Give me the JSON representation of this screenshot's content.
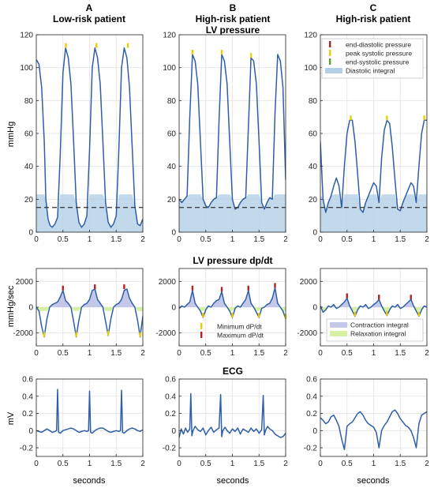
{
  "figure": {
    "columns": [
      {
        "letter": "A",
        "title": "Low-risk patient"
      },
      {
        "letter": "B",
        "title": "High-risk patient"
      },
      {
        "letter": "C",
        "title": "High-risk patient"
      }
    ],
    "row_titles": [
      "LV pressure",
      "LV pressure dp/dt",
      "ECG"
    ],
    "row_ylabels": [
      "mmHg",
      "mmHg/sec",
      "mV"
    ],
    "xlabel": "seconds",
    "colors": {
      "trace": "#2f5ea8",
      "fill_blue": "#b3cfe6",
      "fill_lavender": "#c3c7e8",
      "fill_green": "#d5f0a0",
      "marker_red": "#b22222",
      "marker_yellow": "#e8d000",
      "marker_green": "#5aa02c",
      "dashed": "#333333"
    }
  },
  "legends": {
    "pressure": [
      {
        "label": "end-diastolic pressure",
        "color": "#b22222",
        "kind": "tick"
      },
      {
        "label": "peak systolic pressure",
        "color": "#e8d000",
        "kind": "tick"
      },
      {
        "label": "end-systolic pressure",
        "color": "#5aa02c",
        "kind": "tick"
      },
      {
        "label": "Diastolic integral",
        "color": "#b3cfe6",
        "kind": "patch"
      }
    ],
    "dpdt_markers": [
      {
        "label": "Minimum dP/dt",
        "color": "#e8d000",
        "kind": "tick"
      },
      {
        "label": "Maximum dP/dt",
        "color": "#b22222",
        "kind": "tick"
      }
    ],
    "dpdt_integrals": [
      {
        "label": "Contraction integral",
        "color": "#c3c7e8",
        "kind": "patch"
      },
      {
        "label": "Relaxation integral",
        "color": "#d5f0a0",
        "kind": "patch"
      }
    ]
  },
  "chart_data": [
    {
      "id": "A-pressure",
      "type": "line",
      "ylabel": "mmHg",
      "xlim": [
        0,
        2
      ],
      "ylim": [
        0,
        120
      ],
      "xticks": [
        0,
        0.5,
        1,
        1.5,
        2
      ],
      "yticks": [
        0,
        20,
        40,
        60,
        80,
        100,
        120
      ],
      "grid": true,
      "threshold": 15,
      "x": [
        0,
        0.05,
        0.1,
        0.15,
        0.18,
        0.22,
        0.26,
        0.3,
        0.35,
        0.4,
        0.45,
        0.5,
        0.55,
        0.6,
        0.65,
        0.7,
        0.75,
        0.8,
        0.85,
        0.9,
        0.95,
        1,
        1.05,
        1.1,
        1.15,
        1.2,
        1.25,
        1.3,
        1.35,
        1.4,
        1.45,
        1.5,
        1.55,
        1.6,
        1.65,
        1.7,
        1.75,
        1.8,
        1.85,
        1.9,
        1.95,
        2
      ],
      "y": [
        105,
        102,
        88,
        55,
        20,
        8,
        4,
        3,
        5,
        9,
        48,
        97,
        112,
        106,
        90,
        55,
        18,
        6,
        3,
        5,
        10,
        50,
        100,
        112,
        106,
        90,
        55,
        18,
        6,
        3,
        5,
        10,
        50,
        100,
        112,
        106,
        88,
        52,
        16,
        5,
        4,
        8
      ],
      "markers": [
        {
          "x": 0.555,
          "y": 112,
          "color": "#e8d000"
        },
        {
          "x": 1.13,
          "y": 112,
          "color": "#e8d000"
        },
        {
          "x": 1.72,
          "y": 112,
          "color": "#e8d000"
        }
      ]
    },
    {
      "id": "B-pressure",
      "type": "line",
      "ylabel": "mmHg",
      "xlim": [
        0,
        2
      ],
      "ylim": [
        0,
        120
      ],
      "xticks": [
        0,
        0.5,
        1,
        1.5,
        2
      ],
      "yticks": [
        0,
        20,
        40,
        60,
        80,
        100,
        120
      ],
      "grid": true,
      "threshold": 15,
      "x": [
        0,
        0.05,
        0.1,
        0.15,
        0.2,
        0.25,
        0.3,
        0.35,
        0.4,
        0.45,
        0.5,
        0.55,
        0.6,
        0.65,
        0.7,
        0.75,
        0.8,
        0.85,
        0.9,
        0.95,
        1,
        1.05,
        1.1,
        1.15,
        1.2,
        1.25,
        1.3,
        1.35,
        1.4,
        1.45,
        1.5,
        1.55,
        1.6,
        1.65,
        1.7,
        1.75,
        1.8,
        1.85,
        1.9,
        1.95,
        2
      ],
      "y": [
        20,
        18,
        20,
        22,
        70,
        108,
        104,
        90,
        55,
        20,
        16,
        15,
        18,
        20,
        21,
        68,
        108,
        104,
        90,
        55,
        20,
        14,
        15,
        18,
        20,
        21,
        64,
        106,
        104,
        90,
        55,
        18,
        14,
        18,
        21,
        20,
        72,
        108,
        104,
        88,
        32
      ],
      "markers": [
        {
          "x": 0.25,
          "y": 108,
          "color": "#e8d000"
        },
        {
          "x": 0.8,
          "y": 108,
          "color": "#e8d000"
        },
        {
          "x": 1.35,
          "y": 106,
          "color": "#e8d000"
        }
      ]
    },
    {
      "id": "C-pressure",
      "type": "line",
      "ylabel": "mmHg",
      "xlim": [
        0,
        2
      ],
      "ylim": [
        0,
        120
      ],
      "xticks": [
        0,
        0.5,
        1,
        1.5,
        2
      ],
      "yticks": [
        0,
        20,
        40,
        60,
        80,
        100,
        120
      ],
      "grid": true,
      "threshold": 15,
      "x": [
        0,
        0.05,
        0.1,
        0.15,
        0.2,
        0.25,
        0.3,
        0.35,
        0.4,
        0.45,
        0.5,
        0.55,
        0.6,
        0.65,
        0.7,
        0.75,
        0.8,
        0.85,
        0.9,
        0.95,
        1,
        1.05,
        1.1,
        1.15,
        1.2,
        1.25,
        1.3,
        1.35,
        1.4,
        1.45,
        1.5,
        1.55,
        1.6,
        1.65,
        1.7,
        1.75,
        1.8,
        1.85,
        1.9,
        1.95,
        2
      ],
      "y": [
        55,
        20,
        12,
        18,
        22,
        28,
        33,
        28,
        15,
        40,
        60,
        68,
        68,
        55,
        35,
        14,
        12,
        18,
        22,
        26,
        30,
        28,
        18,
        45,
        62,
        68,
        66,
        52,
        32,
        14,
        13,
        18,
        22,
        26,
        30,
        28,
        18,
        40,
        60,
        68,
        68
      ],
      "markers": [
        {
          "x": 0.57,
          "y": 68,
          "color": "#e8d000"
        },
        {
          "x": 1.25,
          "y": 68,
          "color": "#e8d000"
        },
        {
          "x": 1.95,
          "y": 68,
          "color": "#e8d000"
        }
      ]
    },
    {
      "id": "A-dpdt",
      "type": "line",
      "ylabel": "mmHg/sec",
      "xlim": [
        0,
        2
      ],
      "ylim": [
        -3000,
        3000
      ],
      "xticks": [
        0,
        0.5,
        1,
        1.5,
        2
      ],
      "yticks": [
        -2000,
        0,
        2000
      ],
      "grid": true,
      "x": [
        0,
        0.05,
        0.1,
        0.15,
        0.2,
        0.25,
        0.3,
        0.35,
        0.4,
        0.45,
        0.5,
        0.55,
        0.6,
        0.65,
        0.7,
        0.75,
        0.8,
        0.85,
        0.9,
        0.95,
        1,
        1.05,
        1.1,
        1.15,
        1.2,
        1.25,
        1.3,
        1.35,
        1.4,
        1.45,
        1.5,
        1.55,
        1.6,
        1.65,
        1.7,
        1.75,
        1.8,
        1.85,
        1.9,
        1.95,
        2
      ],
      "y": [
        0,
        -300,
        -1500,
        -2300,
        -900,
        0,
        200,
        300,
        400,
        800,
        1300,
        500,
        300,
        0,
        -1100,
        -2300,
        -1000,
        0,
        200,
        300,
        600,
        1300,
        1400,
        600,
        300,
        0,
        -1100,
        -2200,
        -900,
        0,
        200,
        300,
        600,
        1300,
        1400,
        700,
        300,
        0,
        -1000,
        -2300,
        -700
      ],
      "markers": [
        {
          "x": 0.5,
          "y": 1300,
          "color": "#b22222"
        },
        {
          "x": 1.1,
          "y": 1400,
          "color": "#b22222"
        },
        {
          "x": 1.65,
          "y": 1400,
          "color": "#b22222"
        },
        {
          "x": 0.15,
          "y": -2300,
          "color": "#e8d000"
        },
        {
          "x": 0.75,
          "y": -2300,
          "color": "#e8d000"
        },
        {
          "x": 1.35,
          "y": -2200,
          "color": "#e8d000"
        },
        {
          "x": 1.95,
          "y": -2300,
          "color": "#e8d000"
        }
      ]
    },
    {
      "id": "B-dpdt",
      "type": "line",
      "ylabel": "mmHg/sec",
      "xlim": [
        0,
        2
      ],
      "ylim": [
        -3000,
        3000
      ],
      "xticks": [
        0,
        0.5,
        1,
        1.5,
        2
      ],
      "yticks": [
        -2000,
        0,
        2000
      ],
      "grid": true,
      "x": [
        0,
        0.05,
        0.1,
        0.15,
        0.2,
        0.25,
        0.3,
        0.35,
        0.4,
        0.45,
        0.5,
        0.55,
        0.6,
        0.65,
        0.7,
        0.75,
        0.8,
        0.85,
        0.9,
        0.95,
        1,
        1.05,
        1.1,
        1.15,
        1.2,
        1.25,
        1.3,
        1.35,
        1.4,
        1.45,
        1.5,
        1.55,
        1.6,
        1.65,
        1.7,
        1.75,
        1.8,
        1.85,
        1.9,
        1.95,
        2
      ],
      "y": [
        -100,
        100,
        0,
        200,
        400,
        1300,
        300,
        0,
        -300,
        -800,
        -200,
        100,
        0,
        300,
        500,
        600,
        1200,
        300,
        0,
        -300,
        -800,
        -100,
        100,
        0,
        300,
        600,
        1300,
        300,
        0,
        -400,
        -800,
        -100,
        0,
        200,
        300,
        700,
        1500,
        300,
        0,
        -300,
        -900
      ],
      "markers": [
        {
          "x": 0.25,
          "y": 1300,
          "color": "#b22222"
        },
        {
          "x": 0.8,
          "y": 1200,
          "color": "#b22222"
        },
        {
          "x": 1.3,
          "y": 1300,
          "color": "#b22222"
        },
        {
          "x": 1.8,
          "y": 1500,
          "color": "#b22222"
        },
        {
          "x": 0.45,
          "y": -800,
          "color": "#e8d000"
        },
        {
          "x": 1.0,
          "y": -800,
          "color": "#e8d000"
        },
        {
          "x": 1.5,
          "y": -800,
          "color": "#e8d000"
        },
        {
          "x": 2.0,
          "y": -900,
          "color": "#e8d000"
        }
      ]
    },
    {
      "id": "C-dpdt",
      "type": "line",
      "ylabel": "mmHg/sec",
      "xlim": [
        0,
        2
      ],
      "ylim": [
        -3000,
        3000
      ],
      "xticks": [
        0,
        0.5,
        1,
        1.5,
        2
      ],
      "yticks": [
        -2000,
        0,
        2000
      ],
      "grid": true,
      "x": [
        0,
        0.05,
        0.1,
        0.15,
        0.2,
        0.25,
        0.3,
        0.35,
        0.4,
        0.45,
        0.5,
        0.55,
        0.6,
        0.65,
        0.7,
        0.75,
        0.8,
        0.85,
        0.9,
        0.95,
        1,
        1.05,
        1.1,
        1.15,
        1.2,
        1.25,
        1.3,
        1.35,
        1.4,
        1.45,
        1.5,
        1.55,
        1.6,
        1.65,
        1.7,
        1.75,
        1.8,
        1.85,
        1.9,
        1.95,
        2
      ],
      "y": [
        100,
        -400,
        -200,
        100,
        0,
        200,
        -100,
        0,
        200,
        400,
        700,
        100,
        -300,
        -700,
        -200,
        100,
        0,
        200,
        -100,
        0,
        200,
        350,
        600,
        100,
        -300,
        -650,
        -200,
        100,
        0,
        200,
        -100,
        0,
        200,
        400,
        600,
        100,
        -300,
        -700,
        -200,
        100,
        0
      ],
      "markers": [
        {
          "x": 0.5,
          "y": 700,
          "color": "#b22222"
        },
        {
          "x": 1.1,
          "y": 600,
          "color": "#b22222"
        },
        {
          "x": 1.7,
          "y": 600,
          "color": "#b22222"
        },
        {
          "x": 0.65,
          "y": -700,
          "color": "#e8d000"
        },
        {
          "x": 1.25,
          "y": -650,
          "color": "#e8d000"
        },
        {
          "x": 1.85,
          "y": -700,
          "color": "#e8d000"
        }
      ]
    },
    {
      "id": "A-ecg",
      "type": "line",
      "ylabel": "mV",
      "xlim": [
        0,
        2
      ],
      "ylim": [
        -0.3,
        0.6
      ],
      "xticks": [
        0,
        0.5,
        1,
        1.5,
        2
      ],
      "yticks": [
        -0.2,
        0,
        0.2,
        0.4,
        0.6
      ],
      "grid": true,
      "x": [
        0,
        0.05,
        0.1,
        0.15,
        0.2,
        0.25,
        0.3,
        0.35,
        0.38,
        0.4,
        0.42,
        0.45,
        0.5,
        0.55,
        0.6,
        0.65,
        0.7,
        0.75,
        0.8,
        0.85,
        0.9,
        0.95,
        0.98,
        1.0,
        1.02,
        1.05,
        1.1,
        1.15,
        1.2,
        1.25,
        1.3,
        1.35,
        1.4,
        1.45,
        1.5,
        1.55,
        1.58,
        1.6,
        1.62,
        1.65,
        1.7,
        1.75,
        1.8,
        1.85,
        1.9,
        1.95,
        2
      ],
      "y": [
        0,
        -0.01,
        -0.02,
        0,
        0.02,
        0,
        -0.02,
        -0.01,
        0,
        0.48,
        -0.02,
        -0.03,
        0,
        0.01,
        0.02,
        0.03,
        0.02,
        0,
        -0.02,
        -0.01,
        0,
        -0.01,
        0,
        0.46,
        -0.02,
        -0.03,
        0,
        0.02,
        0.03,
        0.03,
        0.01,
        -0.01,
        -0.02,
        -0.01,
        0,
        -0.01,
        0,
        0.47,
        -0.02,
        -0.03,
        0,
        0.02,
        0.03,
        0.02,
        0,
        -0.01,
        0.01
      ]
    },
    {
      "id": "B-ecg",
      "type": "line",
      "ylabel": "mV",
      "xlim": [
        0,
        2
      ],
      "ylim": [
        -0.3,
        0.6
      ],
      "xticks": [
        0,
        0.5,
        1,
        1.5,
        2
      ],
      "yticks": [
        -0.2,
        0,
        0.2,
        0.4,
        0.6
      ],
      "grid": true,
      "x": [
        0,
        0.04,
        0.08,
        0.12,
        0.16,
        0.2,
        0.22,
        0.24,
        0.26,
        0.3,
        0.35,
        0.4,
        0.45,
        0.5,
        0.55,
        0.6,
        0.65,
        0.7,
        0.75,
        0.78,
        0.8,
        0.82,
        0.86,
        0.9,
        0.95,
        1.0,
        1.05,
        1.1,
        1.15,
        1.2,
        1.25,
        1.3,
        1.35,
        1.4,
        1.45,
        1.5,
        1.55,
        1.58,
        1.6,
        1.62,
        1.66,
        1.7,
        1.75,
        1.8,
        1.85,
        1.9,
        1.95,
        2
      ],
      "y": [
        -0.08,
        0.02,
        -0.04,
        0.03,
        -0.02,
        0.02,
        0.43,
        -0.06,
        0.0,
        0.05,
        0.01,
        -0.01,
        0.03,
        -0.05,
        0.0,
        0.04,
        -0.02,
        0.01,
        0.03,
        0.42,
        -0.07,
        0.0,
        0.04,
        0.0,
        -0.03,
        0.02,
        -0.01,
        0.03,
        -0.04,
        0.02,
        0.0,
        -0.02,
        0.03,
        -0.01,
        0.02,
        -0.03,
        0.01,
        0.41,
        -0.05,
        0.0,
        0.05,
        0.02,
        0.0,
        -0.04,
        -0.06,
        -0.08,
        -0.07,
        -0.03
      ]
    },
    {
      "id": "C-ecg",
      "type": "line",
      "ylabel": "mV",
      "xlim": [
        0,
        2
      ],
      "ylim": [
        -0.3,
        0.6
      ],
      "xticks": [
        0,
        0.5,
        1,
        1.5,
        2
      ],
      "yticks": [
        -0.2,
        0,
        0.2,
        0.4,
        0.6
      ],
      "grid": true,
      "x": [
        0,
        0.05,
        0.1,
        0.15,
        0.2,
        0.25,
        0.3,
        0.35,
        0.4,
        0.45,
        0.5,
        0.55,
        0.6,
        0.65,
        0.7,
        0.75,
        0.8,
        0.85,
        0.9,
        0.95,
        1.0,
        1.05,
        1.1,
        1.15,
        1.2,
        1.25,
        1.3,
        1.35,
        1.4,
        1.45,
        1.5,
        1.55,
        1.6,
        1.65,
        1.7,
        1.75,
        1.8,
        1.85,
        1.9,
        1.95,
        2
      ],
      "y": [
        0.15,
        0.12,
        0.08,
        0.1,
        0.16,
        0.18,
        0.12,
        0.05,
        -0.1,
        -0.22,
        0.05,
        0.08,
        0.1,
        0.15,
        0.2,
        0.22,
        0.18,
        0.12,
        0.08,
        0.06,
        0.04,
        -0.02,
        -0.2,
        0.0,
        0.06,
        0.1,
        0.16,
        0.22,
        0.24,
        0.2,
        0.14,
        0.1,
        0.06,
        0.04,
        0.0,
        -0.08,
        -0.2,
        0.08,
        0.18,
        0.2,
        0.22
      ]
    }
  ]
}
